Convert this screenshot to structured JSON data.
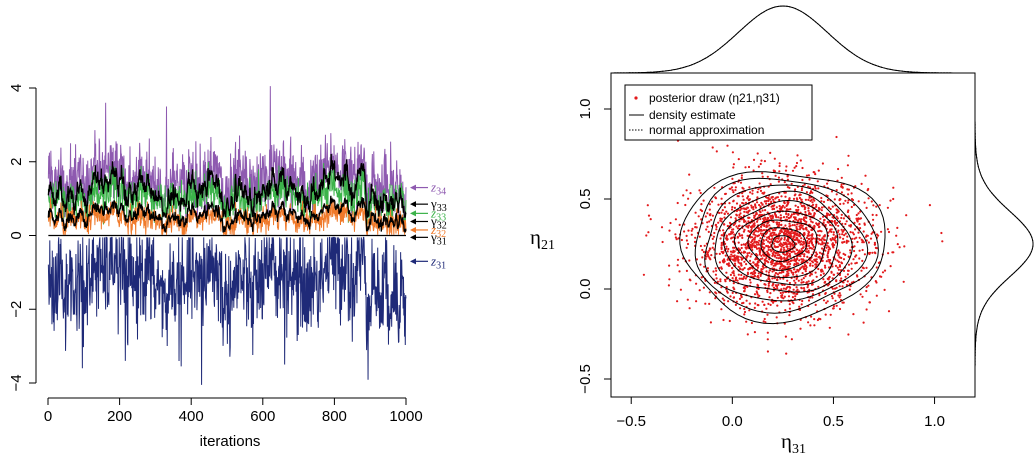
{
  "chart_data": [
    {
      "type": "line",
      "xlabel": "iterations",
      "ylabel": "",
      "xlim": [
        0,
        1000
      ],
      "ylim": [
        -4,
        4
      ],
      "x_ticks": [
        "0",
        "200",
        "400",
        "600",
        "800",
        "1000"
      ],
      "y_ticks": [
        "−4",
        "−2",
        "0",
        "2",
        "4"
      ],
      "series": [
        {
          "name": "z34",
          "color": "#8e5ab0",
          "mean": 1.5,
          "sd": 0.55,
          "min": 0.5,
          "max": 4.05
        },
        {
          "name": "z33",
          "color": "#3cb34a",
          "mean": 1.05,
          "sd": 0.4,
          "min": 0.3,
          "max": 2.6
        },
        {
          "name": "z32",
          "color": "#f07a2a",
          "mean": 0.45,
          "sd": 0.25,
          "min": 0.02,
          "max": 1.3
        },
        {
          "name": "z31",
          "color": "#1f2a78",
          "mean": -1.2,
          "sd": 0.75,
          "min": -4.05,
          "max": -0.05
        },
        {
          "name": "γ33",
          "color": "#000000",
          "mean": 1.2,
          "sd": 0.35
        },
        {
          "name": "γ32",
          "color": "#000000",
          "mean": 0.55,
          "sd": 0.2
        },
        {
          "name": "γ31",
          "color": "#000000",
          "value": 0.0
        }
      ],
      "annotations": [
        {
          "label_main": "z",
          "label_sub": "34",
          "y": 1.3,
          "color": "#8e5ab0"
        },
        {
          "label_main": "γ",
          "label_sub": "33",
          "y": 0.85,
          "color": "#000000"
        },
        {
          "label_main": "z",
          "label_sub": "33",
          "y": 0.6,
          "color": "#3cb34a"
        },
        {
          "label_main": "γ",
          "label_sub": "32",
          "y": 0.38,
          "color": "#000000"
        },
        {
          "label_main": "z",
          "label_sub": "32",
          "y": 0.15,
          "color": "#f07a2a"
        },
        {
          "label_main": "γ",
          "label_sub": "31",
          "y": -0.05,
          "color": "#000000"
        },
        {
          "label_main": "z",
          "label_sub": "31",
          "y": -0.7,
          "color": "#1f2a78"
        }
      ]
    },
    {
      "type": "scatter",
      "xlabel_main": "η",
      "xlabel_sub": "31",
      "ylabel_main": "η",
      "ylabel_sub": "21",
      "xlim": [
        -0.6,
        1.2
      ],
      "ylim": [
        -0.6,
        1.2
      ],
      "x_ticks": [
        "−0.5",
        "0.0",
        "0.5",
        "1.0"
      ],
      "y_ticks": [
        "−0.5",
        "0.0",
        "0.5",
        "1.0"
      ],
      "x_tick_values": [
        -0.5,
        0.0,
        0.5,
        1.0
      ],
      "y_tick_values": [
        -0.5,
        0.0,
        0.5,
        1.0
      ],
      "points": {
        "n": 2400,
        "mean": [
          0.25,
          0.25
        ],
        "sd": [
          0.22,
          0.18
        ],
        "color": "#e31a1c"
      },
      "contour_levels": 9,
      "legend": {
        "position": "top-left",
        "entries": [
          {
            "label": "posterior draw (η21,η31)",
            "style": "point",
            "color": "#e31a1c"
          },
          {
            "label": "density estimate",
            "style": "solid",
            "color": "#000000"
          },
          {
            "label": "normal approximation",
            "style": "dotted",
            "color": "#000000"
          }
        ]
      },
      "marginals": {
        "top": "density of η31",
        "right": "density of η21",
        "style": [
          "solid",
          "dotted"
        ]
      }
    }
  ]
}
